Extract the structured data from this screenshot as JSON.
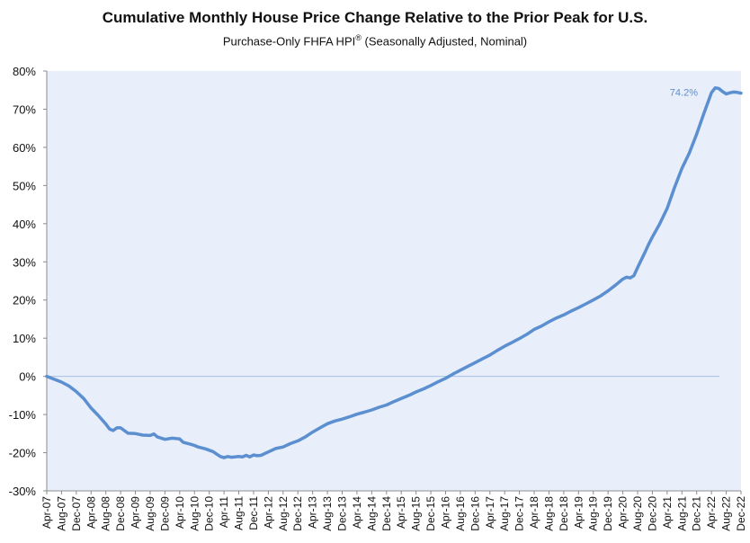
{
  "chart_data": {
    "type": "line",
    "title": "Cumulative Monthly House Price Change Relative to the Prior Peak for U.S.",
    "subtitle": {
      "text": "Purchase-Only FHFA HPI",
      "superscript": "®",
      "suffix": " (Seasonally Adjusted, Nominal)"
    },
    "xlabel": "",
    "ylabel": "",
    "ylim": [
      -30,
      80
    ],
    "y_ticks": [
      -30,
      -20,
      -10,
      0,
      10,
      20,
      30,
      40,
      50,
      60,
      70,
      80
    ],
    "y_tick_labels": [
      "-30%",
      "-20%",
      "-10%",
      "0%",
      "10%",
      "20%",
      "30%",
      "40%",
      "50%",
      "60%",
      "70%",
      "80%"
    ],
    "x_start": "2007-04",
    "x_end": "2022-12",
    "x_tick_labels": [
      "Apr-07",
      "Aug-07",
      "Dec-07",
      "Apr-08",
      "Aug-08",
      "Dec-08",
      "Apr-09",
      "Aug-09",
      "Dec-09",
      "Apr-10",
      "Aug-10",
      "Dec-10",
      "Apr-11",
      "Aug-11",
      "Dec-11",
      "Apr-12",
      "Aug-12",
      "Dec-12",
      "Apr-13",
      "Aug-13",
      "Dec-13",
      "Apr-14",
      "Aug-14",
      "Dec-14",
      "Apr-15",
      "Aug-15",
      "Dec-15",
      "Apr-16",
      "Aug-16",
      "Dec-16",
      "Apr-17",
      "Aug-17",
      "Dec-17",
      "Apr-18",
      "Aug-18",
      "Dec-18",
      "Apr-19",
      "Aug-19",
      "Dec-19",
      "Apr-20",
      "Aug-20",
      "Dec-20",
      "Apr-21",
      "Aug-21",
      "Dec-21",
      "Apr-22",
      "Aug-22",
      "Dec-22"
    ],
    "grid": false,
    "legend": "none",
    "plot_background": "#e8eefa",
    "line_color": "#5b8fd0",
    "zero_line_color": "#a9c1e6",
    "series": [
      {
        "points": [
          {
            "x": "2007-04",
            "y": 0.0
          },
          {
            "x": "2007-08",
            "y": -1.5
          },
          {
            "x": "2007-10",
            "y": -2.5
          },
          {
            "x": "2007-12",
            "y": -4.0
          },
          {
            "x": "2008-02",
            "y": -5.8
          },
          {
            "x": "2008-04",
            "y": -8.3
          },
          {
            "x": "2008-06",
            "y": -10.3
          },
          {
            "x": "2008-08",
            "y": -12.5
          },
          {
            "x": "2008-09",
            "y": -13.8
          },
          {
            "x": "2008-10",
            "y": -14.2
          },
          {
            "x": "2008-11",
            "y": -13.5
          },
          {
            "x": "2008-12",
            "y": -13.5
          },
          {
            "x": "2009-02",
            "y": -14.9
          },
          {
            "x": "2009-04",
            "y": -15.0
          },
          {
            "x": "2009-06",
            "y": -15.4
          },
          {
            "x": "2009-08",
            "y": -15.5
          },
          {
            "x": "2009-09",
            "y": -15.1
          },
          {
            "x": "2009-10",
            "y": -15.9
          },
          {
            "x": "2009-12",
            "y": -16.5
          },
          {
            "x": "2010-02",
            "y": -16.2
          },
          {
            "x": "2010-04",
            "y": -16.4
          },
          {
            "x": "2010-05",
            "y": -17.3
          },
          {
            "x": "2010-07",
            "y": -17.8
          },
          {
            "x": "2010-08",
            "y": -18.1
          },
          {
            "x": "2010-09",
            "y": -18.5
          },
          {
            "x": "2010-11",
            "y": -19.0
          },
          {
            "x": "2011-01",
            "y": -19.7
          },
          {
            "x": "2011-03",
            "y": -21.0
          },
          {
            "x": "2011-04",
            "y": -21.3
          },
          {
            "x": "2011-05",
            "y": -21.0
          },
          {
            "x": "2011-06",
            "y": -21.2
          },
          {
            "x": "2011-08",
            "y": -21.0
          },
          {
            "x": "2011-09",
            "y": -21.1
          },
          {
            "x": "2011-10",
            "y": -20.7
          },
          {
            "x": "2011-11",
            "y": -21.1
          },
          {
            "x": "2011-12",
            "y": -20.6
          },
          {
            "x": "2012-01",
            "y": -20.8
          },
          {
            "x": "2012-02",
            "y": -20.7
          },
          {
            "x": "2012-04",
            "y": -19.8
          },
          {
            "x": "2012-06",
            "y": -18.9
          },
          {
            "x": "2012-08",
            "y": -18.5
          },
          {
            "x": "2012-10",
            "y": -17.6
          },
          {
            "x": "2012-12",
            "y": -16.9
          },
          {
            "x": "2013-02",
            "y": -15.9
          },
          {
            "x": "2013-04",
            "y": -14.6
          },
          {
            "x": "2013-06",
            "y": -13.5
          },
          {
            "x": "2013-08",
            "y": -12.4
          },
          {
            "x": "2013-10",
            "y": -11.7
          },
          {
            "x": "2013-12",
            "y": -11.2
          },
          {
            "x": "2014-02",
            "y": -10.6
          },
          {
            "x": "2014-04",
            "y": -9.9
          },
          {
            "x": "2014-06",
            "y": -9.4
          },
          {
            "x": "2014-08",
            "y": -8.8
          },
          {
            "x": "2014-10",
            "y": -8.1
          },
          {
            "x": "2014-12",
            "y": -7.5
          },
          {
            "x": "2015-02",
            "y": -6.6
          },
          {
            "x": "2015-04",
            "y": -5.8
          },
          {
            "x": "2015-06",
            "y": -5.0
          },
          {
            "x": "2015-08",
            "y": -4.1
          },
          {
            "x": "2015-10",
            "y": -3.3
          },
          {
            "x": "2015-12",
            "y": -2.4
          },
          {
            "x": "2016-02",
            "y": -1.4
          },
          {
            "x": "2016-04",
            "y": -0.5
          },
          {
            "x": "2016-06",
            "y": 0.6
          },
          {
            "x": "2016-08",
            "y": 1.6
          },
          {
            "x": "2016-10",
            "y": 2.6
          },
          {
            "x": "2016-12",
            "y": 3.6
          },
          {
            "x": "2017-02",
            "y": 4.6
          },
          {
            "x": "2017-04",
            "y": 5.6
          },
          {
            "x": "2017-06",
            "y": 6.8
          },
          {
            "x": "2017-08",
            "y": 7.9
          },
          {
            "x": "2017-10",
            "y": 8.9
          },
          {
            "x": "2017-12",
            "y": 9.9
          },
          {
            "x": "2018-02",
            "y": 11.0
          },
          {
            "x": "2018-04",
            "y": 12.3
          },
          {
            "x": "2018-06",
            "y": 13.2
          },
          {
            "x": "2018-08",
            "y": 14.3
          },
          {
            "x": "2018-10",
            "y": 15.3
          },
          {
            "x": "2018-12",
            "y": 16.1
          },
          {
            "x": "2019-02",
            "y": 17.1
          },
          {
            "x": "2019-04",
            "y": 18.0
          },
          {
            "x": "2019-06",
            "y": 19.0
          },
          {
            "x": "2019-08",
            "y": 20.0
          },
          {
            "x": "2019-10",
            "y": 21.1
          },
          {
            "x": "2019-12",
            "y": 22.4
          },
          {
            "x": "2020-02",
            "y": 23.9
          },
          {
            "x": "2020-04",
            "y": 25.5
          },
          {
            "x": "2020-05",
            "y": 26.0
          },
          {
            "x": "2020-06",
            "y": 25.8
          },
          {
            "x": "2020-07",
            "y": 26.4
          },
          {
            "x": "2020-08",
            "y": 28.5
          },
          {
            "x": "2020-09",
            "y": 30.5
          },
          {
            "x": "2020-10",
            "y": 32.5
          },
          {
            "x": "2020-11",
            "y": 34.6
          },
          {
            "x": "2020-12",
            "y": 36.5
          },
          {
            "x": "2021-02",
            "y": 40.0
          },
          {
            "x": "2021-04",
            "y": 44.0
          },
          {
            "x": "2021-06",
            "y": 49.5
          },
          {
            "x": "2021-08",
            "y": 54.5
          },
          {
            "x": "2021-10",
            "y": 58.5
          },
          {
            "x": "2021-12",
            "y": 63.5
          },
          {
            "x": "2022-02",
            "y": 69.0
          },
          {
            "x": "2022-04",
            "y": 74.3
          },
          {
            "x": "2022-05",
            "y": 75.6
          },
          {
            "x": "2022-06",
            "y": 75.4
          },
          {
            "x": "2022-07",
            "y": 74.6
          },
          {
            "x": "2022-08",
            "y": 74.0
          },
          {
            "x": "2022-09",
            "y": 74.3
          },
          {
            "x": "2022-10",
            "y": 74.5
          },
          {
            "x": "2022-11",
            "y": 74.4
          },
          {
            "x": "2022-12",
            "y": 74.2
          }
        ]
      }
    ],
    "annotations": [
      {
        "text": "74.2%",
        "x": "2022-12",
        "y": 74.2
      }
    ]
  }
}
